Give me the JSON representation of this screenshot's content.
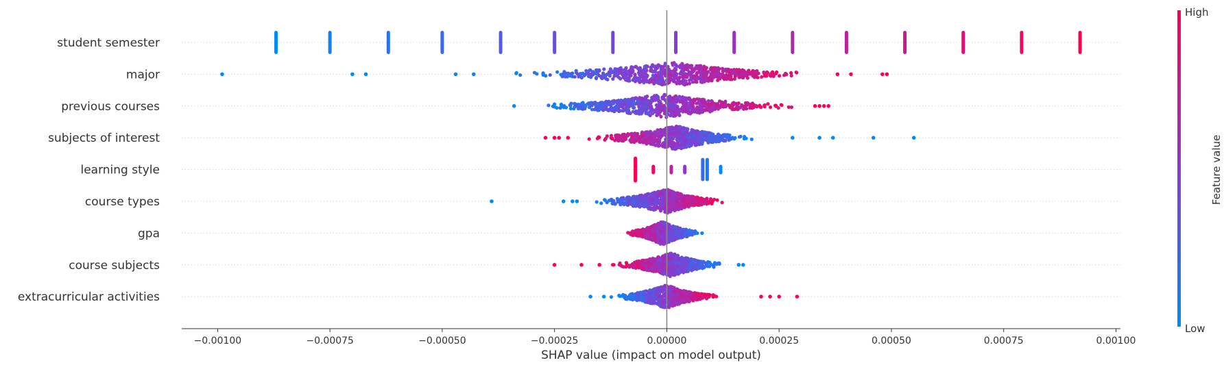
{
  "chart_data": {
    "type": "scatter",
    "subtype": "shap-beeswarm",
    "title": "",
    "xlabel": "SHAP value (impact on model output)",
    "xlim": [
      -0.00108,
      0.00101
    ],
    "x_ticks": [
      -0.001,
      -0.00075,
      -0.0005,
      -0.00025,
      0.0,
      0.00025,
      0.0005,
      0.00075,
      0.001
    ],
    "x_tick_labels": [
      "−0.00100",
      "−0.00075",
      "−0.00050",
      "−0.00025",
      "0.00000",
      "0.00025",
      "0.00050",
      "0.00075",
      "0.00100"
    ],
    "grid": false,
    "zero_line": true,
    "colorbar": {
      "label": "Feature value",
      "high_label": "High",
      "low_label": "Low",
      "low_color": "#008bfb",
      "high_color": "#ff0051"
    },
    "features": [
      {
        "name": "student semester",
        "kind": "discrete",
        "values": [
          {
            "x": -0.00087,
            "color": 0.0
          },
          {
            "x": -0.00075,
            "color": 0.07
          },
          {
            "x": -0.00062,
            "color": 0.14
          },
          {
            "x": -0.0005,
            "color": 0.21
          },
          {
            "x": -0.00037,
            "color": 0.29
          },
          {
            "x": -0.00025,
            "color": 0.36
          },
          {
            "x": -0.00012,
            "color": 0.43
          },
          {
            "x": 2e-05,
            "color": 0.5
          },
          {
            "x": 0.00015,
            "color": 0.57
          },
          {
            "x": 0.00028,
            "color": 0.64
          },
          {
            "x": 0.0004,
            "color": 0.71
          },
          {
            "x": 0.00053,
            "color": 0.79
          },
          {
            "x": 0.00066,
            "color": 0.86
          },
          {
            "x": 0.00079,
            "color": 0.93
          },
          {
            "x": 0.00092,
            "color": 1.0
          }
        ]
      },
      {
        "name": "major",
        "kind": "cloud",
        "range": [
          -0.00039,
          0.00034
        ],
        "color_trend": "increasing",
        "peak": 2e-05,
        "outliers": [
          {
            "x": -0.00099,
            "color": 0.0
          },
          {
            "x": -0.0007,
            "color": 0.0
          },
          {
            "x": -0.00067,
            "color": 0.0
          },
          {
            "x": -0.00047,
            "color": 0.05
          },
          {
            "x": -0.00043,
            "color": 0.05
          },
          {
            "x": 0.00038,
            "color": 0.95
          },
          {
            "x": 0.00041,
            "color": 0.95
          },
          {
            "x": 0.00048,
            "color": 1.0
          },
          {
            "x": 0.00049,
            "color": 1.0
          }
        ]
      },
      {
        "name": "previous courses",
        "kind": "cloud",
        "range": [
          -0.00032,
          0.00031
        ],
        "color_trend": "increasing",
        "peak": -1e-05,
        "outliers": [
          {
            "x": -0.00034,
            "color": 0.0
          },
          {
            "x": 0.00033,
            "color": 1.0
          },
          {
            "x": 0.00034,
            "color": 1.0
          },
          {
            "x": 0.00035,
            "color": 1.0
          },
          {
            "x": 0.00036,
            "color": 1.0
          }
        ]
      },
      {
        "name": "subjects of interest",
        "kind": "cloud",
        "range": [
          -0.00019,
          0.00021
        ],
        "color_trend": "decreasing",
        "peak": 2e-05,
        "outliers": [
          {
            "x": -0.00027,
            "color": 1.0
          },
          {
            "x": -0.00025,
            "color": 1.0
          },
          {
            "x": -0.00024,
            "color": 1.0
          },
          {
            "x": -0.00022,
            "color": 1.0
          },
          {
            "x": 0.00028,
            "color": 0.0
          },
          {
            "x": 0.00034,
            "color": 0.0
          },
          {
            "x": 0.00037,
            "color": 0.0
          },
          {
            "x": 0.00046,
            "color": 0.0
          },
          {
            "x": 0.00055,
            "color": 0.0
          }
        ]
      },
      {
        "name": "learning style",
        "kind": "discrete",
        "values": [
          {
            "x": -7e-05,
            "color": 1.0
          },
          {
            "x": -3e-05,
            "color": 0.9
          },
          {
            "x": 1e-05,
            "color": 0.7
          },
          {
            "x": 4e-05,
            "color": 0.5
          },
          {
            "x": 8e-05,
            "color": 0.2
          },
          {
            "x": 9e-05,
            "color": 0.1
          },
          {
            "x": 0.00012,
            "color": 0.0
          }
        ]
      },
      {
        "name": "course types",
        "kind": "cloud",
        "range": [
          -0.00018,
          0.00014
        ],
        "color_trend": "increasing",
        "peak": 0.0,
        "outliers": [
          {
            "x": -0.00039,
            "color": 0.0
          },
          {
            "x": -0.00023,
            "color": 0.0
          },
          {
            "x": -0.00021,
            "color": 0.0
          },
          {
            "x": -0.0002,
            "color": 0.0
          }
        ]
      },
      {
        "name": "gpa",
        "kind": "cloud",
        "range": [
          -0.0001,
          9e-05
        ],
        "color_trend": "decreasing",
        "peak": -1e-05,
        "outliers": []
      },
      {
        "name": "course subjects",
        "kind": "cloud",
        "range": [
          -0.00013,
          0.00014
        ],
        "color_trend": "decreasing",
        "peak": 1e-05,
        "outliers": [
          {
            "x": -0.00025,
            "color": 1.0
          },
          {
            "x": -0.00019,
            "color": 1.0
          },
          {
            "x": -0.00015,
            "color": 1.0
          },
          {
            "x": 0.00016,
            "color": 0.0
          },
          {
            "x": 0.00017,
            "color": 0.0
          }
        ]
      },
      {
        "name": "extracurricular activities",
        "kind": "cloud",
        "range": [
          -0.00013,
          0.00012
        ],
        "color_trend": "increasing",
        "peak": 0.0,
        "outliers": [
          {
            "x": -0.00017,
            "color": 0.0
          },
          {
            "x": -0.00014,
            "color": 0.0
          },
          {
            "x": 0.00021,
            "color": 1.0
          },
          {
            "x": 0.00023,
            "color": 1.0
          },
          {
            "x": 0.00025,
            "color": 1.0
          },
          {
            "x": 0.00029,
            "color": 1.0
          }
        ]
      }
    ]
  }
}
